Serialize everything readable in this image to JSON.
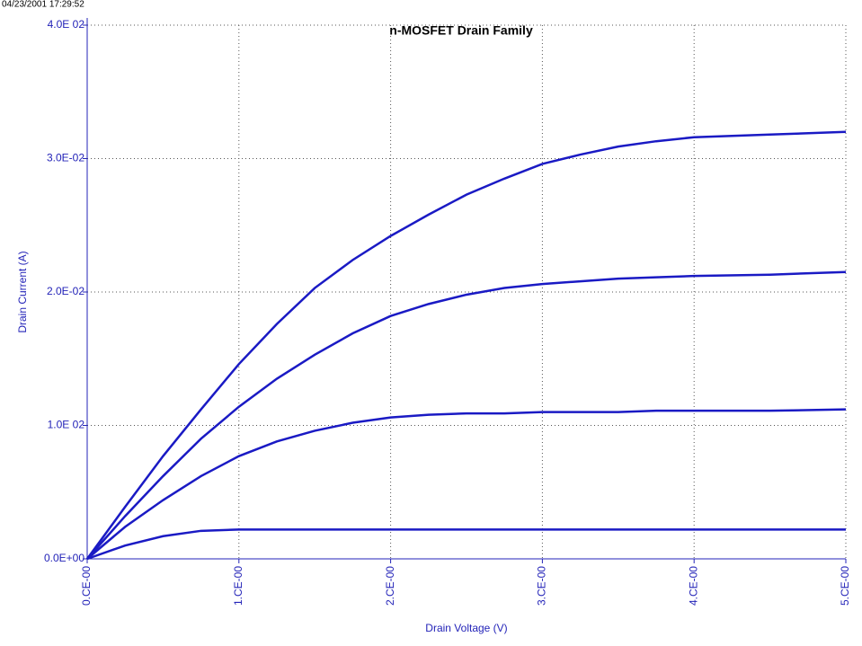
{
  "timestamp": "04/23/2001 17:29:52",
  "chart_data": {
    "type": "line",
    "title": "n-MOSFET Drain Family",
    "x_label": "Drain Voltage (V)",
    "y_label": "Drain Current (A)",
    "x": [
      0,
      0.25,
      0.5,
      0.75,
      1,
      1.25,
      1.5,
      1.75,
      2,
      2.25,
      2.5,
      2.75,
      3,
      3.25,
      3.5,
      3.75,
      4,
      4.5,
      5
    ],
    "series": [
      {
        "color": "#1a1ac4",
        "values": [
          0,
          0.0039,
          0.0077,
          0.0112,
          0.0146,
          0.0176,
          0.0203,
          0.0224,
          0.0242,
          0.0258,
          0.0273,
          0.0285,
          0.0296,
          0.0303,
          0.0309,
          0.0313,
          0.0316,
          0.0318,
          0.032
        ]
      },
      {
        "color": "#1a1ac4",
        "values": [
          0,
          0.0032,
          0.0062,
          0.009,
          0.0114,
          0.0135,
          0.0153,
          0.0169,
          0.0182,
          0.0191,
          0.0198,
          0.0203,
          0.0206,
          0.0208,
          0.021,
          0.0211,
          0.0212,
          0.0213,
          0.0215
        ]
      },
      {
        "color": "#1a1ac4",
        "values": [
          0,
          0.0024,
          0.0044,
          0.0062,
          0.0077,
          0.0088,
          0.0096,
          0.0102,
          0.0106,
          0.0108,
          0.0109,
          0.0109,
          0.011,
          0.011,
          0.011,
          0.0111,
          0.0111,
          0.0111,
          0.0112
        ]
      },
      {
        "color": "#1a1ac4",
        "values": [
          0,
          0.001,
          0.0017,
          0.0021,
          0.0022,
          0.0022,
          0.0022,
          0.0022,
          0.0022,
          0.0022,
          0.0022,
          0.0022,
          0.0022,
          0.0022,
          0.0022,
          0.0022,
          0.0022,
          0.0022,
          0.0022
        ]
      }
    ],
    "xlim": [
      0,
      5
    ],
    "xticks": [
      {
        "value": 0,
        "label": "0.CE-00"
      },
      {
        "value": 1,
        "label": "1.CE-00"
      },
      {
        "value": 2,
        "label": "2.CE-00"
      },
      {
        "value": 3,
        "label": "3.CE-00"
      },
      {
        "value": 4,
        "label": "4.CE-00"
      },
      {
        "value": 5,
        "label": "5.CE-00"
      }
    ],
    "ylim": [
      0,
      0.04
    ],
    "yticks": [
      {
        "value": 0,
        "label": "0.0E+00"
      },
      {
        "value": 0.01,
        "label": "1.0E 02"
      },
      {
        "value": 0.02,
        "label": "2.0E-02"
      },
      {
        "value": 0.03,
        "label": "3.0E-02"
      },
      {
        "value": 0.04,
        "label": "4.0E 02"
      }
    ],
    "grid": true
  }
}
